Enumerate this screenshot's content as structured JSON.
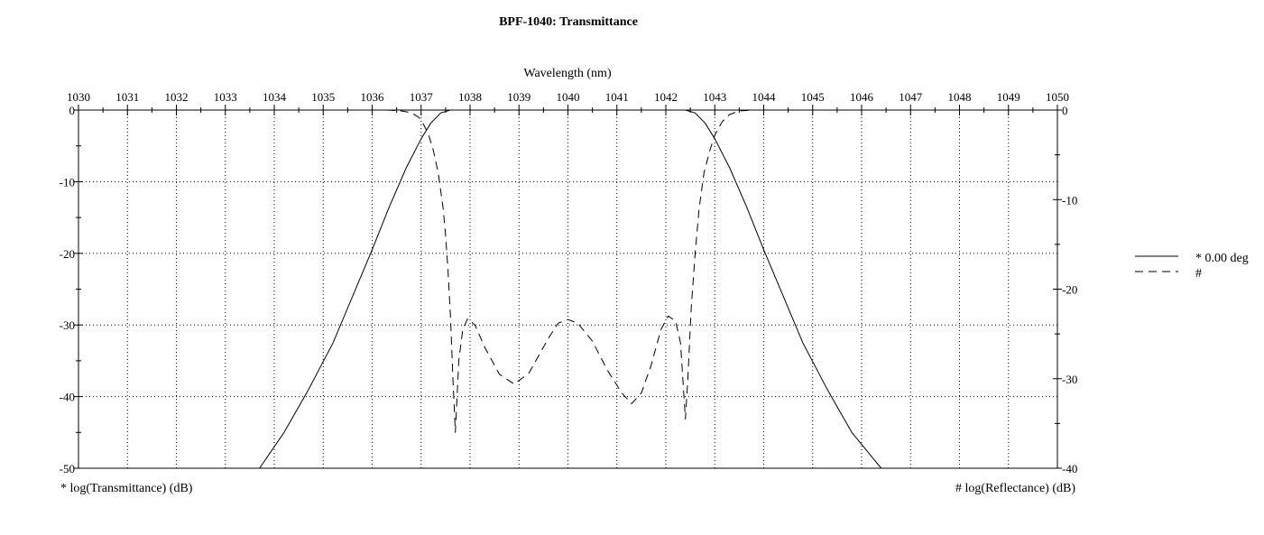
{
  "chart_data": {
    "type": "line",
    "title": "BPF-1040: Transmittance",
    "xlabel": "Wavelength (nm)",
    "ylabel_left": "* log(Transmittance) (dB)",
    "ylabel_right": "# log(Reflectance) (dB)",
    "xlim": [
      1030,
      1050
    ],
    "ylim_left": [
      -50,
      0
    ],
    "ylim_right": [
      -40,
      0
    ],
    "x_ticks": [
      "1030",
      "1031",
      "1032",
      "1033",
      "1034",
      "1035",
      "1036",
      "1037",
      "1038",
      "1039",
      "1040",
      "1041",
      "1042",
      "1043",
      "1044",
      "1045",
      "1046",
      "1047",
      "1048",
      "1049",
      "1050"
    ],
    "y_left_ticks": [
      "0",
      "-10",
      "-20",
      "-30",
      "-40",
      "-50"
    ],
    "y_right_ticks": [
      "0",
      "-10",
      "-20",
      "-30",
      "-40"
    ],
    "grid": true,
    "legend_position": "right",
    "series": [
      {
        "name": "* 0.00 deg",
        "axis": "left",
        "style": "solid",
        "color": "#000000",
        "points": [
          [
            1033.7,
            -50
          ],
          [
            1034.2,
            -45
          ],
          [
            1034.7,
            -39
          ],
          [
            1035.2,
            -32.5
          ],
          [
            1035.6,
            -26
          ],
          [
            1036.0,
            -19.5
          ],
          [
            1036.35,
            -13.5
          ],
          [
            1036.7,
            -8
          ],
          [
            1037.0,
            -4
          ],
          [
            1037.2,
            -1.8
          ],
          [
            1037.4,
            -0.4
          ],
          [
            1037.6,
            0
          ],
          [
            1042.4,
            0
          ],
          [
            1042.6,
            -0.4
          ],
          [
            1042.8,
            -1.8
          ],
          [
            1043.0,
            -4
          ],
          [
            1043.3,
            -8
          ],
          [
            1043.65,
            -13.5
          ],
          [
            1044.0,
            -19.5
          ],
          [
            1044.4,
            -26
          ],
          [
            1044.8,
            -32.5
          ],
          [
            1045.3,
            -39
          ],
          [
            1045.8,
            -45
          ],
          [
            1046.4,
            -50
          ]
        ]
      },
      {
        "name": "#",
        "axis": "right",
        "style": "dashed",
        "color": "#000000",
        "points": [
          [
            1036.3,
            0
          ],
          [
            1036.6,
            -0.1
          ],
          [
            1036.8,
            -0.3
          ],
          [
            1036.95,
            -0.8
          ],
          [
            1037.05,
            -1.6
          ],
          [
            1037.15,
            -2.7
          ],
          [
            1037.25,
            -4.5
          ],
          [
            1037.35,
            -7
          ],
          [
            1037.45,
            -11
          ],
          [
            1037.5,
            -14
          ],
          [
            1037.55,
            -18
          ],
          [
            1037.6,
            -23
          ],
          [
            1037.65,
            -30
          ],
          [
            1037.7,
            -36
          ],
          [
            1037.77,
            -28
          ],
          [
            1037.85,
            -24.5
          ],
          [
            1037.95,
            -23.3
          ],
          [
            1038.1,
            -24
          ],
          [
            1038.3,
            -26.5
          ],
          [
            1038.6,
            -29.5
          ],
          [
            1038.9,
            -30.6
          ],
          [
            1039.2,
            -29.4
          ],
          [
            1039.6,
            -25.5
          ],
          [
            1039.8,
            -23.8
          ],
          [
            1040.0,
            -23.4
          ],
          [
            1040.2,
            -23.8
          ],
          [
            1040.5,
            -25.8
          ],
          [
            1040.8,
            -29
          ],
          [
            1041.1,
            -31.6
          ],
          [
            1041.3,
            -32.8
          ],
          [
            1041.5,
            -31.6
          ],
          [
            1041.7,
            -28.5
          ],
          [
            1041.9,
            -24.5
          ],
          [
            1042.05,
            -23
          ],
          [
            1042.2,
            -23.6
          ],
          [
            1042.3,
            -26
          ],
          [
            1042.4,
            -34.5
          ],
          [
            1042.45,
            -30
          ],
          [
            1042.52,
            -22
          ],
          [
            1042.6,
            -16
          ],
          [
            1042.68,
            -11
          ],
          [
            1042.78,
            -7
          ],
          [
            1042.9,
            -4.5
          ],
          [
            1043.0,
            -2.8
          ],
          [
            1043.15,
            -1.3
          ],
          [
            1043.3,
            -0.5
          ],
          [
            1043.5,
            -0.1
          ],
          [
            1043.8,
            0
          ]
        ]
      }
    ]
  }
}
